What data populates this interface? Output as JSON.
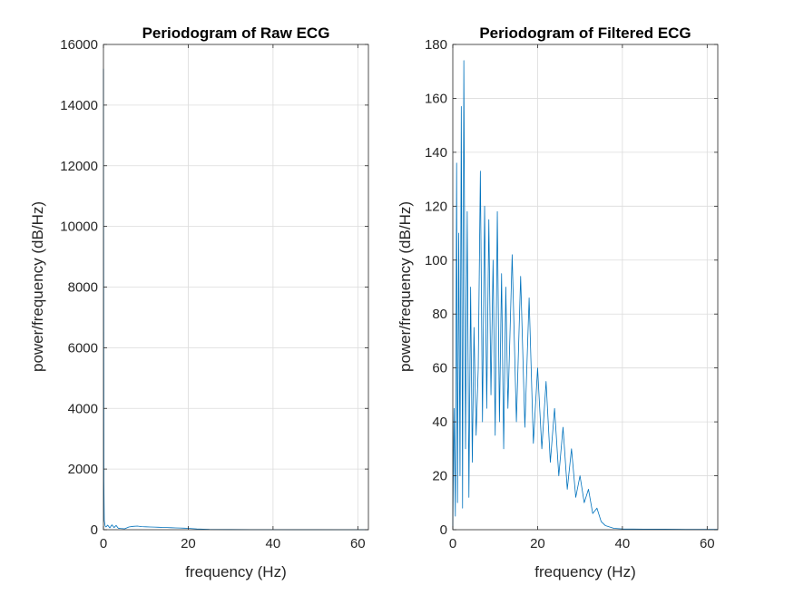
{
  "chart_data": [
    {
      "type": "line",
      "title": "Periodogram of Raw ECG",
      "xlabel": "frequency (Hz)",
      "ylabel": "power/frequency (dB/Hz)",
      "xlim": [
        0,
        62.5
      ],
      "ylim": [
        0,
        16000
      ],
      "xticks": [
        0,
        20,
        40,
        60
      ],
      "yticks": [
        0,
        2000,
        4000,
        6000,
        8000,
        10000,
        12000,
        14000,
        16000
      ],
      "grid": true,
      "color": "#0072BD",
      "series": [
        {
          "x": [
            0,
            0.1,
            0.2,
            0.4,
            0.6,
            1,
            1.5,
            2,
            2.5,
            3,
            3.5,
            4,
            5,
            6,
            7,
            8,
            9,
            10,
            11,
            12,
            13,
            14,
            15,
            16,
            17,
            18,
            19,
            20,
            22,
            25,
            30,
            35,
            40,
            45,
            50,
            55,
            60,
            62.5
          ],
          "y": [
            15200,
            1600,
            300,
            120,
            90,
            150,
            60,
            160,
            70,
            140,
            50,
            40,
            30,
            90,
            110,
            120,
            100,
            95,
            90,
            85,
            80,
            75,
            70,
            65,
            60,
            55,
            50,
            45,
            25,
            12,
            6,
            4,
            3,
            2,
            2,
            1,
            1,
            1
          ]
        }
      ]
    },
    {
      "type": "line",
      "title": "Periodogram of Filtered ECG",
      "xlabel": "frequency (Hz)",
      "ylabel": "power/frequency (dB/Hz)",
      "xlim": [
        0,
        62.5
      ],
      "ylim": [
        0,
        180
      ],
      "xticks": [
        0,
        20,
        40,
        60
      ],
      "yticks": [
        0,
        20,
        40,
        60,
        80,
        100,
        120,
        140,
        160,
        180
      ],
      "grid": true,
      "color": "#0072BD",
      "series": [
        {
          "x": [
            0,
            0.3,
            0.6,
            0.9,
            1.1,
            1.4,
            1.7,
            2.0,
            2.3,
            2.6,
            3.0,
            3.4,
            3.8,
            4.2,
            4.6,
            5.0,
            5.5,
            6.0,
            6.5,
            7.0,
            7.5,
            8.0,
            8.5,
            9.0,
            9.5,
            10.0,
            10.5,
            11.0,
            11.5,
            12.0,
            12.5,
            13.0,
            14.0,
            15.0,
            16.0,
            17.0,
            18.0,
            19.0,
            20.0,
            21.0,
            22.0,
            23.0,
            24.0,
            25.0,
            26.0,
            27.0,
            28.0,
            29.0,
            30.0,
            31.0,
            32.0,
            33.0,
            34.0,
            35.0,
            36.0,
            38.0,
            40.0,
            45.0,
            50.0,
            55.0,
            60.0,
            62.5
          ],
          "y": [
            1,
            45,
            5,
            136,
            10,
            110,
            20,
            157,
            8,
            174,
            30,
            118,
            12,
            90,
            25,
            75,
            35,
            60,
            133,
            40,
            120,
            45,
            115,
            50,
            100,
            35,
            118,
            40,
            95,
            30,
            90,
            45,
            102,
            40,
            94,
            38,
            86,
            32,
            60,
            30,
            55,
            25,
            45,
            20,
            38,
            15,
            30,
            12,
            20,
            10,
            15,
            6,
            8,
            3,
            1.5,
            0.5,
            0.3,
            0.2,
            0.2,
            0.1,
            0.1,
            0.1
          ]
        }
      ]
    }
  ]
}
